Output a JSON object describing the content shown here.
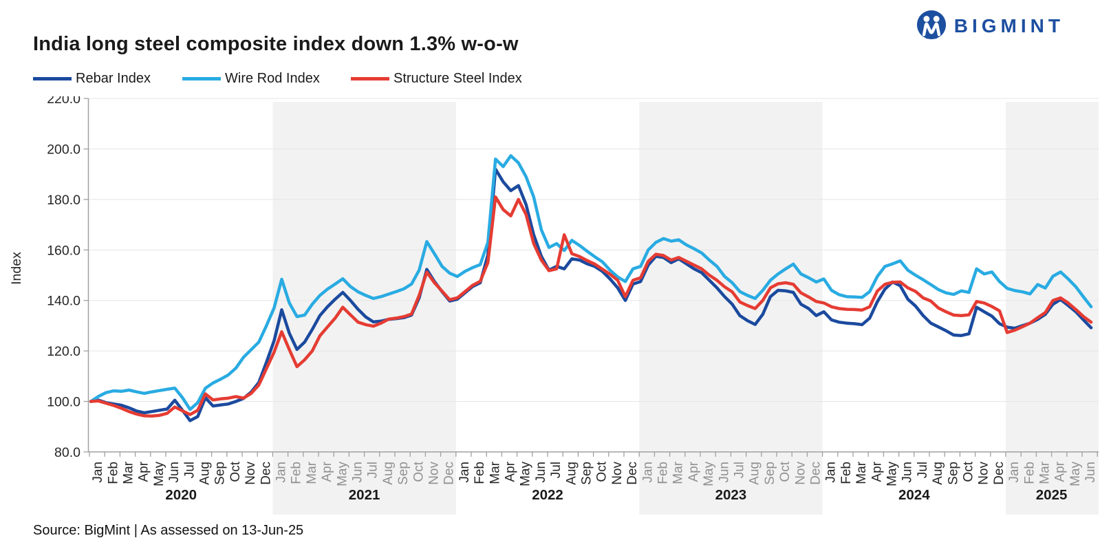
{
  "header": {
    "title": "India long steel composite index down 1.3% w-o-w",
    "logo_text": "BIGMINT"
  },
  "legend": {
    "items": [
      {
        "label": "Rebar Index",
        "color": "#1b4a9e"
      },
      {
        "label": "Wire Rod Index",
        "color": "#29abe2"
      },
      {
        "label": "Structure Steel Index",
        "color": "#e53c33"
      }
    ]
  },
  "footer": {
    "source": "Source: BigMint | As assessed on 13-Jun-25"
  },
  "chart_data": {
    "type": "line",
    "title": "India long steel composite index down 1.3% w-o-w",
    "x_unit": "half-month steps, Jan-2020 to mid-Jun-2025",
    "band_color": "#f2f2f2",
    "grid_color": "#e5e5e5",
    "axis_color": "#a0a0a0",
    "label_color": "#262626",
    "label_color_shaded": "#909090",
    "y_axis": {
      "label": "Index",
      "min": 80,
      "max": 220,
      "step": 20
    },
    "years": [
      {
        "label": "2020",
        "shaded": false,
        "months": [
          "Jan",
          "Feb",
          "Mar",
          "Apr",
          "May",
          "Jun",
          "Jul",
          "Aug",
          "Sep",
          "Oct",
          "Nov",
          "Dec"
        ]
      },
      {
        "label": "2021",
        "shaded": true,
        "months": [
          "Jan",
          "Feb",
          "Mar",
          "Apr",
          "May",
          "Jun",
          "Jul",
          "Aug",
          "Sep",
          "Oct",
          "Nov",
          "Dec"
        ]
      },
      {
        "label": "2022",
        "shaded": false,
        "months": [
          "Jan",
          "Feb",
          "Mar",
          "Apr",
          "May",
          "Jun",
          "Jul",
          "Aug",
          "Sep",
          "Oct",
          "Nov",
          "Dec"
        ]
      },
      {
        "label": "2023",
        "shaded": true,
        "months": [
          "Jan",
          "Feb",
          "Mar",
          "Apr",
          "May",
          "Jun",
          "Jul",
          "Aug",
          "Sep",
          "Oct",
          "Nov",
          "Dec"
        ]
      },
      {
        "label": "2024",
        "shaded": false,
        "months": [
          "Jan",
          "Feb",
          "Mar",
          "Apr",
          "May",
          "Jun",
          "Jul",
          "Aug",
          "Sep",
          "Oct",
          "Nov",
          "Dec"
        ]
      },
      {
        "label": "2025",
        "shaded": true,
        "months": [
          "Jan",
          "Feb",
          "Mar",
          "Apr",
          "May",
          "Jun"
        ]
      }
    ],
    "series": [
      {
        "name": "Rebar Index",
        "color": "#1b4a9e",
        "values": [
          100,
          100.5,
          99.5,
          99,
          98.5,
          97.5,
          96.2,
          95.5,
          96,
          96.5,
          97,
          100.5,
          96.5,
          92.4,
          94,
          101.5,
          98.2,
          98.6,
          99,
          100,
          101.2,
          103.7,
          107.5,
          115.5,
          124,
          136.3,
          127,
          120.6,
          123.5,
          128.5,
          134,
          137.5,
          140.5,
          143.2,
          140,
          136.5,
          133.5,
          131.5,
          131.8,
          132.5,
          132.8,
          133.2,
          134.2,
          141,
          152.3,
          147.5,
          143.5,
          139.8,
          140.5,
          143,
          145.5,
          147,
          158,
          192,
          187,
          183.5,
          185.5,
          178,
          166,
          157.5,
          152,
          153.5,
          152.5,
          156.5,
          156,
          154.5,
          153.5,
          151.5,
          148.5,
          145,
          140,
          146.5,
          147.5,
          154,
          157.5,
          157,
          155,
          156.5,
          154.5,
          152.5,
          151,
          148,
          145,
          141.5,
          138.5,
          134,
          132,
          130.5,
          134.5,
          141.5,
          144,
          143.8,
          143.2,
          138.5,
          136.8,
          134,
          135.5,
          132.3,
          131.4,
          131,
          130.8,
          130.4,
          133,
          139.5,
          144.5,
          147.3,
          145.8,
          140.5,
          137.8,
          134,
          131,
          129.5,
          128,
          126.3,
          126.1,
          126.8,
          137.3,
          135.5,
          133.8,
          130.8,
          129.4,
          129,
          130,
          131,
          132.5,
          134.5,
          138.5,
          140.4,
          138,
          135.5,
          132.3,
          129.2
        ]
      },
      {
        "name": "Wire Rod Index",
        "color": "#29abe2",
        "values": [
          100,
          102,
          103.5,
          104.2,
          104,
          104.5,
          103.8,
          103.2,
          103.8,
          104.3,
          104.8,
          105.3,
          101.5,
          96.8,
          99.5,
          105.2,
          107.3,
          108.8,
          110.5,
          113.2,
          117.5,
          120.5,
          123.5,
          130,
          137,
          148.4,
          139,
          133.6,
          134.2,
          138.5,
          142,
          144.5,
          146.5,
          148.6,
          145.5,
          143.4,
          142,
          140.8,
          141.5,
          142.5,
          143.5,
          144.6,
          146.5,
          152,
          163.3,
          158.5,
          153.5,
          150.8,
          149.5,
          151.5,
          153,
          154.2,
          163,
          196,
          193,
          197.3,
          194.5,
          189,
          181,
          168,
          161,
          162.5,
          159.8,
          163.8,
          161.8,
          159.5,
          157.3,
          155.3,
          152,
          149.3,
          147.5,
          152.5,
          153.5,
          160,
          163,
          164.5,
          163.5,
          164,
          162,
          160.5,
          158.8,
          156,
          153.5,
          149.5,
          147,
          143.5,
          142,
          140.8,
          144,
          148,
          150.5,
          152.5,
          154.4,
          150.5,
          149,
          147.3,
          148.5,
          144,
          142.3,
          141.5,
          141.4,
          141.2,
          143.5,
          149.5,
          153.5,
          154.5,
          155.7,
          152,
          150,
          148.2,
          146.3,
          144.3,
          143,
          142.4,
          143.8,
          143.2,
          152.5,
          150.5,
          151.3,
          147.5,
          144.8,
          143.9,
          143.4,
          142.6,
          146.3,
          144.9,
          149.6,
          151.3,
          148.5,
          145.4,
          141.4,
          137.5
        ]
      },
      {
        "name": "Structure Steel Index",
        "color": "#e53c33",
        "values": [
          100,
          100.2,
          99.3,
          98.4,
          97.3,
          96,
          95,
          94.3,
          94.2,
          94.5,
          95.3,
          97.8,
          96.3,
          94.8,
          96.5,
          103,
          100.6,
          101,
          101.3,
          101.9,
          101.3,
          103.2,
          106.5,
          113,
          119.5,
          127.6,
          120.5,
          113.8,
          116.5,
          120,
          126,
          129.5,
          133,
          137.3,
          134.3,
          131.4,
          130.4,
          129.8,
          131,
          132.6,
          133,
          133.6,
          134.6,
          142,
          151.2,
          147,
          143.7,
          140.3,
          141,
          143.5,
          146,
          147.6,
          155,
          181,
          176,
          173.5,
          180,
          174,
          162.5,
          156,
          151.8,
          152.5,
          166,
          158.5,
          157.4,
          155.8,
          154.4,
          152.4,
          150.4,
          148,
          141.5,
          148,
          149,
          155.5,
          158.3,
          157.8,
          156,
          157,
          155.5,
          154,
          152.5,
          150,
          148,
          145.4,
          143.4,
          139.4,
          138,
          136.8,
          140,
          145,
          146.6,
          147,
          146.4,
          143,
          141.4,
          139.6,
          139,
          137.5,
          136.8,
          136.5,
          136.4,
          136.2,
          137.5,
          143.7,
          146.4,
          147.2,
          147.3,
          145,
          143.6,
          141,
          139.8,
          137,
          135.5,
          134.2,
          134,
          134.3,
          139.6,
          139,
          137.6,
          135.9,
          127.3,
          128.2,
          129.6,
          131,
          133.2,
          135.2,
          140,
          141,
          139,
          136.4,
          133.6,
          131.4
        ]
      }
    ]
  }
}
